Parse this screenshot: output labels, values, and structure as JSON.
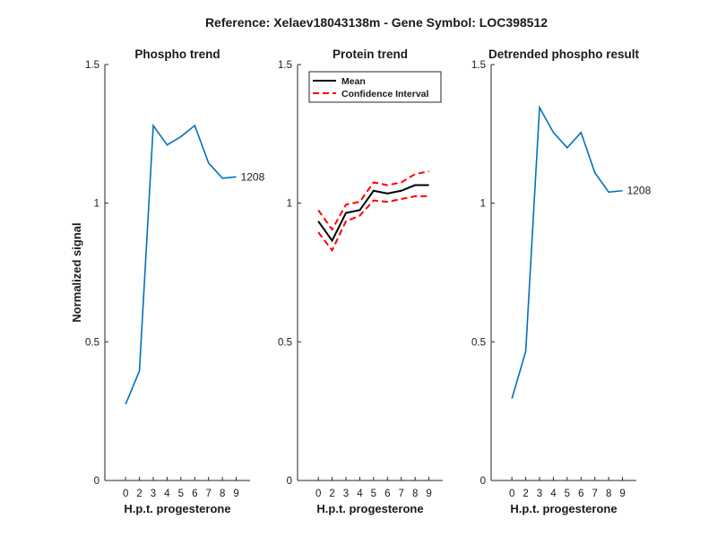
{
  "title": "Reference:  Xelaev18043138m - Gene Symbol:  LOC398512",
  "colors": {
    "blue": "#0072BD",
    "black": "#000000",
    "red": "#FF0000",
    "axis": "#262626"
  },
  "chart_data": [
    {
      "type": "line",
      "title": "Phospho trend",
      "xlabel": "H.p.t. progesterone",
      "ylabel": "Normalized signal",
      "ylim": [
        0,
        1.5
      ],
      "yticks": [
        0,
        0.5,
        1,
        1.5
      ],
      "ytick_labels": [
        "0",
        "0.5",
        "1",
        "1.5"
      ],
      "xticks": [
        0,
        2,
        3,
        4,
        5,
        6,
        7,
        8,
        9
      ],
      "x": [
        1,
        2,
        3,
        4,
        5,
        6,
        7,
        8,
        9
      ],
      "series": [
        {
          "values": [
            0.275,
            0.395,
            1.28,
            1.21,
            1.24,
            1.28,
            1.145,
            1.09,
            1.095
          ],
          "color": "#0072BD",
          "style": "solid"
        }
      ],
      "annotation": {
        "text": "1208",
        "x": 9,
        "y": 1.095
      }
    },
    {
      "type": "line",
      "title": "Protein trend",
      "xlabel": "H.p.t. progesterone",
      "ylabel": "",
      "ylim": [
        0,
        1.5
      ],
      "yticks": [
        0,
        0.5,
        1,
        1.5
      ],
      "ytick_labels": [
        "0",
        "0.5",
        "1",
        "1.5"
      ],
      "xticks": [
        0,
        2,
        3,
        4,
        5,
        6,
        7,
        8,
        9
      ],
      "x": [
        1,
        2,
        3,
        4,
        5,
        6,
        7,
        8,
        9
      ],
      "series": [
        {
          "name": "Mean",
          "values": [
            0.935,
            0.865,
            0.965,
            0.975,
            1.045,
            1.035,
            1.045,
            1.065,
            1.065
          ],
          "color": "#000000",
          "style": "solid"
        },
        {
          "name": "Confidence Interval",
          "values": [
            0.975,
            0.905,
            0.995,
            1.005,
            1.075,
            1.065,
            1.075,
            1.105,
            1.115
          ],
          "color": "#FF0000",
          "style": "dashed"
        },
        {
          "values": [
            0.895,
            0.83,
            0.935,
            0.955,
            1.01,
            1.005,
            1.015,
            1.025,
            1.025
          ],
          "color": "#FF0000",
          "style": "dashed"
        }
      ],
      "legend": {
        "placement": "top-left",
        "entries": [
          "Mean",
          "Confidence Interval"
        ]
      }
    },
    {
      "type": "line",
      "title": "Detrended phospho result",
      "xlabel": "H.p.t. progesterone",
      "ylabel": "",
      "ylim": [
        0,
        1.5
      ],
      "yticks": [
        0,
        0.5,
        1,
        1.5
      ],
      "ytick_labels": [
        "0",
        "0.5",
        "1",
        "1.5"
      ],
      "xticks": [
        0,
        2,
        3,
        4,
        5,
        6,
        7,
        8,
        9
      ],
      "x": [
        1,
        2,
        3,
        4,
        5,
        6,
        7,
        8,
        9
      ],
      "series": [
        {
          "values": [
            0.295,
            0.465,
            1.345,
            1.255,
            1.2,
            1.255,
            1.11,
            1.04,
            1.045
          ],
          "color": "#0072BD",
          "style": "solid"
        }
      ],
      "annotation": {
        "text": "1208",
        "x": 9,
        "y": 1.045
      }
    }
  ]
}
